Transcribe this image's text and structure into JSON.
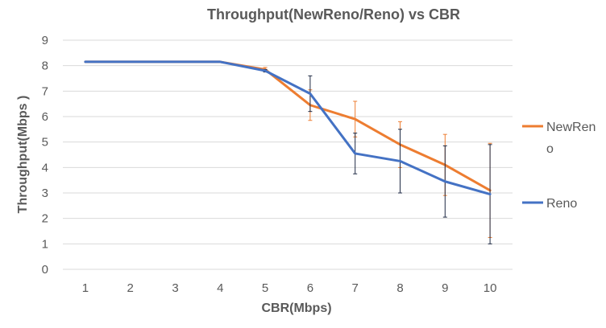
{
  "chart_data": {
    "type": "line",
    "title": "Throughput(NewReno/Reno) vs CBR",
    "xlabel": "CBR(Mbps)",
    "ylabel": "Throughput(Mbps )",
    "x": [
      1,
      2,
      3,
      4,
      5,
      6,
      7,
      8,
      9,
      10
    ],
    "ylim": [
      0,
      9
    ],
    "yticks": [
      0,
      1,
      2,
      3,
      4,
      5,
      6,
      7,
      8,
      9
    ],
    "grid": "horizontal",
    "legend_position": "right",
    "series": [
      {
        "name": "NewReno",
        "color": "#ED7D31",
        "values": [
          8.15,
          8.15,
          8.15,
          8.15,
          7.85,
          6.45,
          5.9,
          4.9,
          4.1,
          3.1
        ],
        "error": [
          0,
          0,
          0,
          0,
          0.08,
          0.6,
          0.7,
          0.9,
          1.2,
          1.85
        ]
      },
      {
        "name": "Reno",
        "color": "#4472C4",
        "values": [
          8.15,
          8.15,
          8.15,
          8.15,
          7.8,
          6.9,
          4.55,
          4.25,
          3.45,
          2.95
        ],
        "error": [
          0,
          0,
          0,
          0,
          0.05,
          0.7,
          0.8,
          1.25,
          1.4,
          1.95
        ]
      }
    ]
  }
}
